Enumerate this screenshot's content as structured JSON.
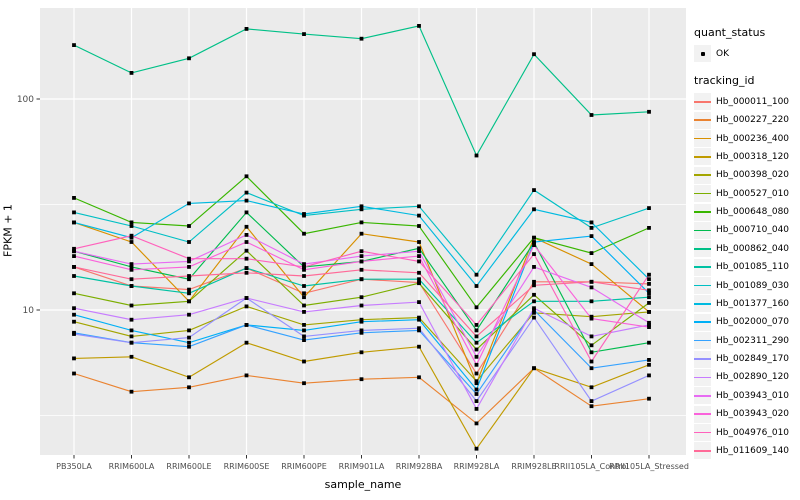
{
  "chart_data": {
    "type": "line",
    "title": "",
    "xlabel": "sample_name",
    "ylabel": "FPKM + 1",
    "yscale": "log10",
    "ylim": [
      2.05,
      270
    ],
    "yticks": [
      10,
      100
    ],
    "ytick_labels": [
      "10",
      "100"
    ],
    "minor_gridlines": [
      3.162,
      31.623
    ],
    "grid": true,
    "legend_position": "right",
    "panel_bg": "#EBEBEB",
    "gridline_color": "#FFFFFF",
    "tick_label_color": "#4D4D4D",
    "point_color": "#000000",
    "categories": [
      "PB350LA",
      "RRIM600LA",
      "RRIM600LE",
      "RRIM600SE",
      "RRIM600PE",
      "RRIM901LA",
      "RRIM928BA",
      "RRIM928LA",
      "RRIM928LE",
      "RRII105LA_Control",
      "RRII105LA_Stressed"
    ],
    "legend": {
      "quant_status_title": "quant_status",
      "quant_status_items": [
        {
          "label": "OK",
          "glyph": "black-point"
        }
      ],
      "tracking_id_title": "tracking_id"
    },
    "series": [
      {
        "name": "Hb_000011_100",
        "color": "#F8766D",
        "values": [
          16.0,
          13.0,
          12.5,
          15.8,
          12.0,
          14.0,
          13.5,
          5.0,
          13.6,
          13.6,
          13.3
        ]
      },
      {
        "name": "Hb_000227_220",
        "color": "#EA8331",
        "values": [
          5.0,
          4.1,
          4.3,
          4.9,
          4.5,
          4.7,
          4.8,
          2.9,
          5.3,
          3.5,
          3.8
        ]
      },
      {
        "name": "Hb_000236_400",
        "color": "#D89000",
        "values": [
          26.0,
          21.0,
          11.0,
          24.8,
          11.5,
          23.0,
          21.0,
          4.5,
          22.0,
          16.5,
          9.8
        ]
      },
      {
        "name": "Hb_000318_120",
        "color": "#C09B00",
        "values": [
          5.9,
          6.0,
          4.8,
          7.0,
          5.7,
          6.3,
          6.7,
          2.2,
          5.3,
          4.3,
          5.5
        ]
      },
      {
        "name": "Hb_000398_020",
        "color": "#A3A500",
        "values": [
          8.8,
          7.5,
          8.0,
          10.4,
          8.5,
          9.0,
          9.2,
          4.6,
          9.7,
          9.3,
          9.8
        ]
      },
      {
        "name": "Hb_000527_010",
        "color": "#7CAE00",
        "values": [
          12.0,
          10.5,
          11.0,
          19.1,
          10.5,
          11.5,
          13.4,
          6.5,
          11.8,
          6.8,
          10.8
        ]
      },
      {
        "name": "Hb_000648_080",
        "color": "#39B600",
        "values": [
          34.0,
          26.0,
          25.0,
          43.0,
          23.0,
          26.0,
          25.0,
          10.3,
          22.0,
          18.6,
          24.5
        ]
      },
      {
        "name": "Hb_000710_040",
        "color": "#00BB4E",
        "values": [
          19.0,
          16.0,
          14.0,
          29.0,
          16.0,
          17.0,
          19.6,
          8.0,
          20.9,
          6.3,
          7.0
        ]
      },
      {
        "name": "Hb_000862_040",
        "color": "#00C087",
        "values": [
          180,
          133,
          156,
          215,
          203,
          193,
          222,
          54,
          163,
          84,
          87
        ]
      },
      {
        "name": "Hb_001085_110",
        "color": "#00C1A3",
        "values": [
          14.5,
          13.0,
          12.0,
          15.8,
          13.0,
          14.0,
          14.0,
          7.0,
          11.0,
          11.0,
          11.5
        ]
      },
      {
        "name": "Hb_001089_030",
        "color": "#00BFC4",
        "values": [
          29.0,
          25.0,
          21.0,
          36.0,
          28.0,
          30.0,
          31.0,
          14.7,
          37.0,
          24.5,
          30.4
        ]
      },
      {
        "name": "Hb_001377_160",
        "color": "#00BAE0",
        "values": [
          26.0,
          22.0,
          32.0,
          33.0,
          28.5,
          31.0,
          28.0,
          13.0,
          30.0,
          26.0,
          14.0
        ]
      },
      {
        "name": "Hb_002000_070",
        "color": "#00B0F6",
        "values": [
          9.5,
          8.0,
          7.0,
          8.5,
          8.0,
          8.8,
          9.0,
          4.2,
          21.0,
          22.4,
          12.0
        ]
      },
      {
        "name": "Hb_002311_290",
        "color": "#35A2FF",
        "values": [
          7.8,
          7.0,
          6.7,
          8.5,
          7.2,
          7.8,
          8.0,
          4.0,
          10.0,
          5.3,
          5.8
        ]
      },
      {
        "name": "Hb_002849_170",
        "color": "#9590FF",
        "values": [
          7.7,
          7.0,
          7.4,
          11.4,
          7.5,
          8.0,
          8.2,
          3.7,
          9.2,
          3.7,
          4.9
        ]
      },
      {
        "name": "Hb_002890_120",
        "color": "#C77CFF",
        "values": [
          10.2,
          9.0,
          9.5,
          11.4,
          9.8,
          10.5,
          10.9,
          3.4,
          10.2,
          7.5,
          8.5
        ]
      },
      {
        "name": "Hb_003943_010",
        "color": "#E76BF3",
        "values": [
          19.0,
          16.5,
          17.0,
          22.7,
          16.5,
          18.0,
          19.0,
          6.0,
          16.0,
          12.8,
          8.7
        ]
      },
      {
        "name": "Hb_003943_020",
        "color": "#FA62DB",
        "values": [
          18.0,
          15.5,
          16.0,
          21.0,
          15.5,
          17.0,
          18.0,
          5.5,
          20.3,
          9.1,
          8.3
        ]
      },
      {
        "name": "Hb_004976_010",
        "color": "#FF62BC",
        "values": [
          19.5,
          22.5,
          17.5,
          17.5,
          16.0,
          19.0,
          17.0,
          8.5,
          18.4,
          5.7,
          14.7
        ]
      },
      {
        "name": "Hb_011609_140",
        "color": "#FF6A98",
        "values": [
          16.0,
          14.0,
          14.5,
          15.0,
          14.5,
          15.5,
          15.0,
          7.5,
          13.1,
          13.6,
          12.4
        ]
      }
    ]
  }
}
